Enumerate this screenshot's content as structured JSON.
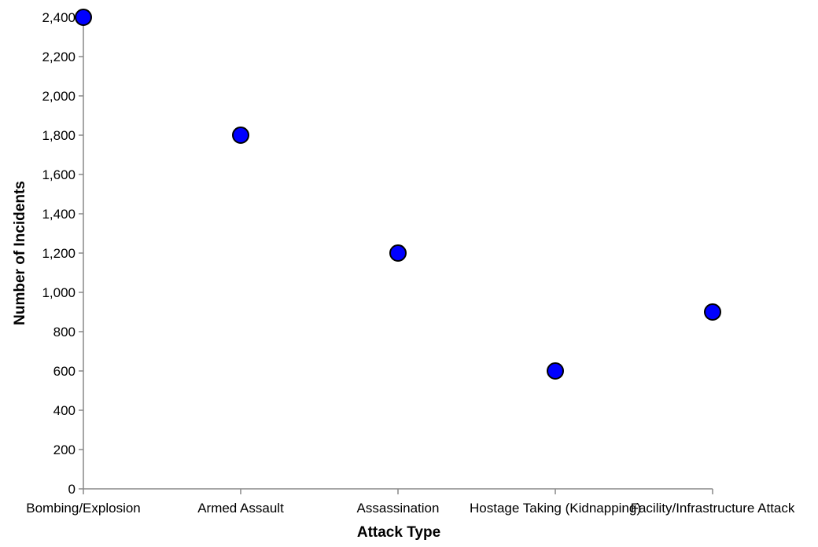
{
  "chart_data": {
    "type": "scatter",
    "categories": [
      "Bombing/Explosion",
      "Armed Assault",
      "Assassination",
      "Hostage Taking (Kidnapping)",
      "Facility/Infrastructure Attack"
    ],
    "values": [
      2400,
      1800,
      1200,
      600,
      900
    ],
    "xlabel": "Attack Type",
    "ylabel": "Number of Incidents",
    "ylim": [
      0,
      2400
    ],
    "yticks": [
      0,
      200,
      400,
      600,
      800,
      1000,
      1200,
      1400,
      1600,
      1800,
      2000,
      2200,
      2400
    ],
    "ytick_labels": [
      "0",
      "200",
      "400",
      "600",
      "800",
      "1,000",
      "1,200",
      "1,400",
      "1,600",
      "1,800",
      "2,000",
      "2,200",
      "2,400"
    ],
    "grid": false,
    "legend": "none",
    "colors": {
      "point_fill": "#0000ff",
      "point_stroke": "#000000",
      "axis": "#888888"
    }
  }
}
